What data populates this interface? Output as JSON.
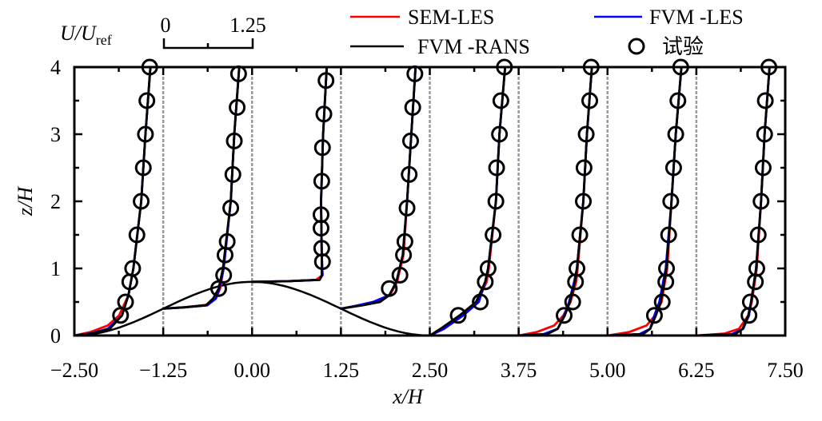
{
  "chart_data": {
    "type": "line",
    "xlabel": "x/H",
    "ylabel": "z/H",
    "xlim": [
      -2.5,
      7.5
    ],
    "ylim": [
      0,
      4
    ],
    "x_ticks": [
      "−2.50",
      "−1.25",
      "0.00",
      "1.25",
      "2.50",
      "3.75",
      "5.00",
      "6.25",
      "7.50"
    ],
    "x_tick_values": [
      -2.5,
      -1.25,
      0,
      1.25,
      2.5,
      3.75,
      5,
      6.25,
      7.5
    ],
    "y_ticks": [
      "0",
      "1",
      "2",
      "3",
      "4"
    ],
    "y_tick_values": [
      0,
      1,
      2,
      3,
      4
    ],
    "grid": false,
    "legend_position": "top",
    "scale_bar": {
      "label_main": "U/U",
      "label_sub": "ref",
      "start": "0",
      "end": "1.25",
      "length": 1.25
    },
    "stations": [
      -2.5,
      -1.25,
      0,
      1.25,
      2.5,
      3.75,
      5,
      6.25
    ],
    "hill": {
      "height": 0.8,
      "half_width": 2.5,
      "shape": "cosine-squared",
      "color": "#000000"
    },
    "series": [
      {
        "name": "SEM-LES",
        "color": "#ff0000",
        "profiles": [
          [
            [
              0,
              0
            ],
            [
              0.05,
              0.22
            ],
            [
              0.15,
              0.47
            ],
            [
              0.3,
              0.63
            ],
            [
              0.6,
              0.76
            ],
            [
              1,
              0.83
            ],
            [
              2,
              0.94
            ],
            [
              3,
              1.0
            ],
            [
              4,
              1.07
            ]
          ],
          [
            [
              0.4,
              0
            ],
            [
              0.42,
              0.3
            ],
            [
              0.46,
              0.62
            ],
            [
              0.55,
              0.74
            ],
            [
              0.7,
              0.8
            ],
            [
              1.0,
              0.85
            ],
            [
              2,
              0.95
            ],
            [
              3,
              1.0
            ],
            [
              4,
              1.07
            ]
          ],
          [
            [
              0.8,
              0
            ],
            [
              0.81,
              0.5
            ],
            [
              0.83,
              0.9
            ],
            [
              0.9,
              0.99
            ],
            [
              1.2,
              0.98
            ],
            [
              2,
              0.97
            ],
            [
              3,
              1.0
            ],
            [
              4,
              1.05
            ]
          ],
          [
            [
              0.4,
              0
            ],
            [
              0.45,
              0.25
            ],
            [
              0.52,
              0.55
            ],
            [
              0.62,
              0.7
            ],
            [
              0.8,
              0.79
            ],
            [
              1.2,
              0.88
            ],
            [
              2,
              0.93
            ],
            [
              3,
              0.99
            ],
            [
              4,
              1.05
            ]
          ],
          [
            [
              0,
              0
            ],
            [
              0.1,
              0.2
            ],
            [
              0.3,
              0.45
            ],
            [
              0.5,
              0.67
            ],
            [
              0.8,
              0.8
            ],
            [
              1.0,
              0.83
            ],
            [
              2,
              0.93
            ],
            [
              3,
              0.98
            ],
            [
              4,
              1.06
            ]
          ],
          [
            [
              0,
              0
            ],
            [
              0.05,
              0.25
            ],
            [
              0.15,
              0.5
            ],
            [
              0.3,
              0.63
            ],
            [
              0.5,
              0.73
            ],
            [
              0.8,
              0.81
            ],
            [
              1,
              0.83
            ],
            [
              2,
              0.91
            ],
            [
              3,
              0.96
            ],
            [
              4,
              1.03
            ]
          ],
          [
            [
              0,
              0
            ],
            [
              0.05,
              0.3
            ],
            [
              0.15,
              0.55
            ],
            [
              0.3,
              0.67
            ],
            [
              0.5,
              0.76
            ],
            [
              1,
              0.84
            ],
            [
              2,
              0.9
            ],
            [
              3,
              0.96
            ],
            [
              4,
              1.04
            ]
          ],
          [
            [
              0,
              0
            ],
            [
              0.03,
              0.4
            ],
            [
              0.1,
              0.6
            ],
            [
              0.3,
              0.73
            ],
            [
              0.5,
              0.78
            ],
            [
              1,
              0.85
            ],
            [
              2,
              0.91
            ],
            [
              3,
              0.96
            ],
            [
              4,
              1.03
            ]
          ]
        ]
      },
      {
        "name": "FVM -LES",
        "color": "#0000ff",
        "profiles": [
          [
            [
              0,
              0
            ],
            [
              0.03,
              0.22
            ],
            [
              0.1,
              0.47
            ],
            [
              0.3,
              0.67
            ],
            [
              0.6,
              0.76
            ],
            [
              1,
              0.83
            ],
            [
              2,
              0.94
            ],
            [
              3,
              1.0
            ],
            [
              4,
              1.07
            ]
          ],
          [
            [
              0.4,
              0
            ],
            [
              0.42,
              0.3
            ],
            [
              0.45,
              0.62
            ],
            [
              0.55,
              0.74
            ],
            [
              0.7,
              0.79
            ],
            [
              1.0,
              0.85
            ],
            [
              2,
              0.95
            ],
            [
              3,
              1.0
            ],
            [
              4,
              1.07
            ]
          ],
          [
            [
              0.8,
              0
            ],
            [
              0.81,
              0.5
            ],
            [
              0.83,
              0.95
            ],
            [
              0.9,
              0.99
            ],
            [
              1.2,
              0.98
            ],
            [
              2,
              0.97
            ],
            [
              3,
              1.0
            ],
            [
              4,
              1.05
            ]
          ],
          [
            [
              0.4,
              0
            ],
            [
              0.44,
              0.2
            ],
            [
              0.5,
              0.45
            ],
            [
              0.6,
              0.68
            ],
            [
              0.8,
              0.78
            ],
            [
              1.2,
              0.87
            ],
            [
              2,
              0.93
            ],
            [
              3,
              0.99
            ],
            [
              4,
              1.05
            ]
          ],
          [
            [
              0,
              0
            ],
            [
              0.1,
              0.2
            ],
            [
              0.3,
              0.47
            ],
            [
              0.5,
              0.69
            ],
            [
              0.8,
              0.78
            ],
            [
              1.0,
              0.82
            ],
            [
              2,
              0.93
            ],
            [
              3,
              0.98
            ],
            [
              4,
              1.06
            ]
          ],
          [
            [
              0,
              0
            ],
            [
              0.02,
              0.35
            ],
            [
              0.1,
              0.55
            ],
            [
              0.3,
              0.64
            ],
            [
              0.5,
              0.71
            ],
            [
              0.8,
              0.78
            ],
            [
              1,
              0.82
            ],
            [
              2,
              0.91
            ],
            [
              3,
              0.96
            ],
            [
              4,
              1.03
            ]
          ],
          [
            [
              0,
              0
            ],
            [
              0.02,
              0.45
            ],
            [
              0.1,
              0.6
            ],
            [
              0.3,
              0.66
            ],
            [
              0.5,
              0.73
            ],
            [
              1,
              0.82
            ],
            [
              2,
              0.9
            ],
            [
              3,
              0.96
            ],
            [
              4,
              1.04
            ]
          ],
          [
            [
              0,
              0
            ],
            [
              0.02,
              0.5
            ],
            [
              0.1,
              0.66
            ],
            [
              0.3,
              0.74
            ],
            [
              0.5,
              0.77
            ],
            [
              1,
              0.84
            ],
            [
              2,
              0.91
            ],
            [
              3,
              0.96
            ],
            [
              4,
              1.03
            ]
          ]
        ]
      },
      {
        "name": "FVM -RANS",
        "color": "#000000",
        "profiles": [
          [
            [
              0,
              0
            ],
            [
              0.03,
              0.25
            ],
            [
              0.1,
              0.5
            ],
            [
              0.3,
              0.67
            ],
            [
              0.6,
              0.76
            ],
            [
              1,
              0.83
            ],
            [
              2,
              0.94
            ],
            [
              3,
              1.0
            ],
            [
              4,
              1.07
            ]
          ],
          [
            [
              0.4,
              0
            ],
            [
              0.42,
              0.3
            ],
            [
              0.45,
              0.6
            ],
            [
              0.55,
              0.7
            ],
            [
              0.7,
              0.78
            ],
            [
              1.0,
              0.84
            ],
            [
              2,
              0.95
            ],
            [
              3,
              1.0
            ],
            [
              4,
              1.07
            ]
          ],
          [
            [
              0.8,
              0
            ],
            [
              0.81,
              0.5
            ],
            [
              0.83,
              0.95
            ],
            [
              0.9,
              0.98
            ],
            [
              1.2,
              0.98
            ],
            [
              2,
              0.97
            ],
            [
              3,
              1.0
            ],
            [
              4,
              1.05
            ]
          ],
          [
            [
              0.4,
              0
            ],
            [
              0.45,
              0.3
            ],
            [
              0.5,
              0.55
            ],
            [
              0.6,
              0.68
            ],
            [
              0.8,
              0.78
            ],
            [
              1.2,
              0.87
            ],
            [
              2,
              0.93
            ],
            [
              3,
              0.99
            ],
            [
              4,
              1.05
            ]
          ],
          [
            [
              0,
              0
            ],
            [
              0.1,
              0.15
            ],
            [
              0.3,
              0.42
            ],
            [
              0.5,
              0.65
            ],
            [
              0.8,
              0.78
            ],
            [
              1.0,
              0.82
            ],
            [
              2,
              0.93
            ],
            [
              3,
              0.98
            ],
            [
              4,
              1.06
            ]
          ],
          [
            [
              0,
              0
            ],
            [
              0.02,
              0.4
            ],
            [
              0.1,
              0.55
            ],
            [
              0.3,
              0.65
            ],
            [
              0.5,
              0.72
            ],
            [
              0.8,
              0.79
            ],
            [
              1,
              0.82
            ],
            [
              2,
              0.91
            ],
            [
              3,
              0.96
            ],
            [
              4,
              1.03
            ]
          ],
          [
            [
              0,
              0
            ],
            [
              0.02,
              0.5
            ],
            [
              0.1,
              0.6
            ],
            [
              0.3,
              0.68
            ],
            [
              0.5,
              0.75
            ],
            [
              1,
              0.83
            ],
            [
              2,
              0.9
            ],
            [
              3,
              0.96
            ],
            [
              4,
              1.04
            ]
          ],
          [
            [
              0,
              0
            ],
            [
              0.02,
              0.55
            ],
            [
              0.1,
              0.65
            ],
            [
              0.3,
              0.73
            ],
            [
              0.5,
              0.77
            ],
            [
              1,
              0.84
            ],
            [
              2,
              0.91
            ],
            [
              3,
              0.96
            ],
            [
              4,
              1.03
            ]
          ]
        ]
      }
    ],
    "experiment": {
      "name": "试验",
      "marker": "circle",
      "profiles": [
        {
          "z": [
            0.3,
            0.5,
            0.8,
            1.0,
            1.5,
            2,
            2.5,
            3,
            3.5,
            4
          ],
          "u": [
            0.65,
            0.72,
            0.78,
            0.82,
            0.88,
            0.94,
            0.97,
            1.0,
            1.02,
            1.06
          ]
        },
        {
          "z": [
            0.7,
            0.9,
            1.2,
            1.4,
            1.9,
            2.4,
            2.9,
            3.4,
            3.9
          ],
          "u": [
            0.78,
            0.85,
            0.87,
            0.9,
            0.95,
            0.98,
            1.0,
            1.04,
            1.06
          ]
        },
        {
          "z": [
            1.1,
            1.3,
            1.6,
            1.8,
            2.3,
            2.8,
            3.3,
            3.8
          ],
          "u": [
            0.99,
            0.98,
            0.97,
            0.97,
            0.98,
            0.99,
            1.01,
            1.04
          ]
        },
        {
          "z": [
            0.7,
            0.9,
            1.2,
            1.4,
            1.9,
            2.4,
            2.9,
            3.4,
            3.9
          ],
          "u": [
            0.68,
            0.83,
            0.88,
            0.9,
            0.93,
            0.96,
            0.98,
            1.01,
            1.04
          ]
        },
        {
          "z": [
            0.3,
            0.5,
            0.8,
            1.0,
            1.5,
            2,
            2.5,
            3,
            3.5,
            4
          ],
          "u": [
            0.4,
            0.71,
            0.78,
            0.82,
            0.89,
            0.93,
            0.94,
            0.98,
            1.0,
            1.05
          ]
        },
        {
          "z": [
            0.3,
            0.5,
            0.8,
            1.0,
            1.5,
            2,
            2.5,
            3,
            3.5,
            4
          ],
          "u": [
            0.64,
            0.76,
            0.8,
            0.82,
            0.86,
            0.91,
            0.92,
            0.95,
            1.0,
            1.02
          ]
        },
        {
          "z": [
            0.3,
            0.5,
            0.8,
            1.0,
            1.5,
            2,
            2.5,
            3,
            3.5,
            4
          ],
          "u": [
            0.66,
            0.77,
            0.82,
            0.83,
            0.86,
            0.89,
            0.93,
            0.96,
            0.99,
            1.03
          ]
        },
        {
          "z": [
            0.3,
            0.5,
            0.8,
            1.0,
            1.5,
            2,
            2.5,
            3,
            3.5,
            4
          ],
          "u": [
            0.74,
            0.76,
            0.83,
            0.85,
            0.87,
            0.91,
            0.94,
            0.96,
            0.97,
            1.02
          ]
        }
      ]
    },
    "station_line_color": "#999999"
  }
}
